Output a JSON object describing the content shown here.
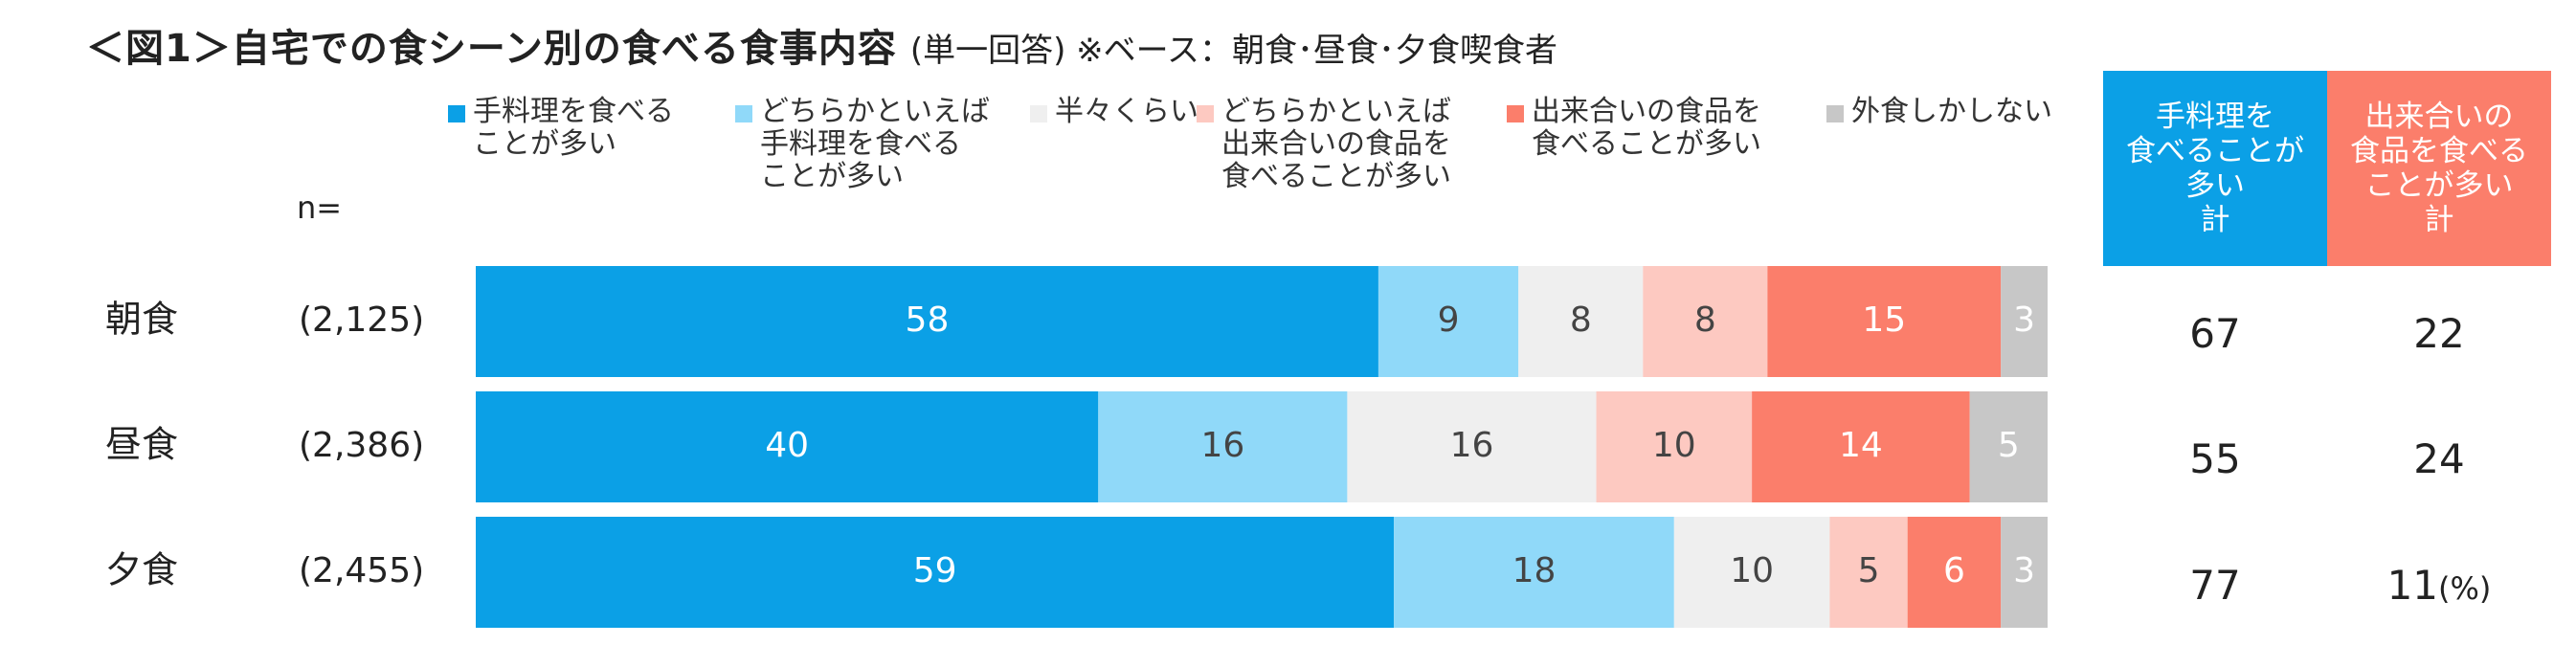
{
  "title": "＜図1＞自宅での食シーン別の食べる食事内容",
  "subtitle": "(単一回答)  ※ベース：朝食･昼食･夕食喫食者",
  "n_label": "n=",
  "chart_data": {
    "type": "bar",
    "orientation": "horizontal-stacked-100",
    "unit": "(%)",
    "categories": [
      "朝食",
      "昼食",
      "夕食"
    ],
    "n": [
      "(2,125)",
      "(2,386)",
      "(2,455)"
    ],
    "series": [
      {
        "name": "手料理を食べる\nことが多い",
        "color": "#0ba0e6",
        "label_color": "#ffffff",
        "values": [
          58,
          40,
          59
        ]
      },
      {
        "name": "どちらかといえば\n手料理を食べる\nことが多い",
        "color": "#90d9f9",
        "label_color": "#444444",
        "values": [
          9,
          16,
          18
        ]
      },
      {
        "name": "半々くらい",
        "color": "#efefef",
        "label_color": "#444444",
        "values": [
          8,
          16,
          10
        ]
      },
      {
        "name": "どちらかといえば\n出来合いの食品を\n食べることが多い",
        "color": "#fdc9c1",
        "label_color": "#444444",
        "values": [
          8,
          10,
          5
        ]
      },
      {
        "name": "出来合いの食品を\n食べることが多い",
        "color": "#fb7e6b",
        "label_color": "#ffffff",
        "values": [
          15,
          14,
          6
        ]
      },
      {
        "name": "外食しかしない",
        "color": "#c7c7c7",
        "label_color": "#ffffff",
        "values": [
          3,
          5,
          3
        ]
      }
    ],
    "totals": {
      "headers": [
        {
          "label": "手料理を\n食べることが\n多い\n計",
          "color": "#0ba0e6"
        },
        {
          "label": "出来合いの\n食品を食べる\nことが多い\n計",
          "color": "#fb7e6b"
        }
      ],
      "values": [
        [
          67,
          22
        ],
        [
          55,
          24
        ],
        [
          77,
          11
        ]
      ]
    }
  }
}
